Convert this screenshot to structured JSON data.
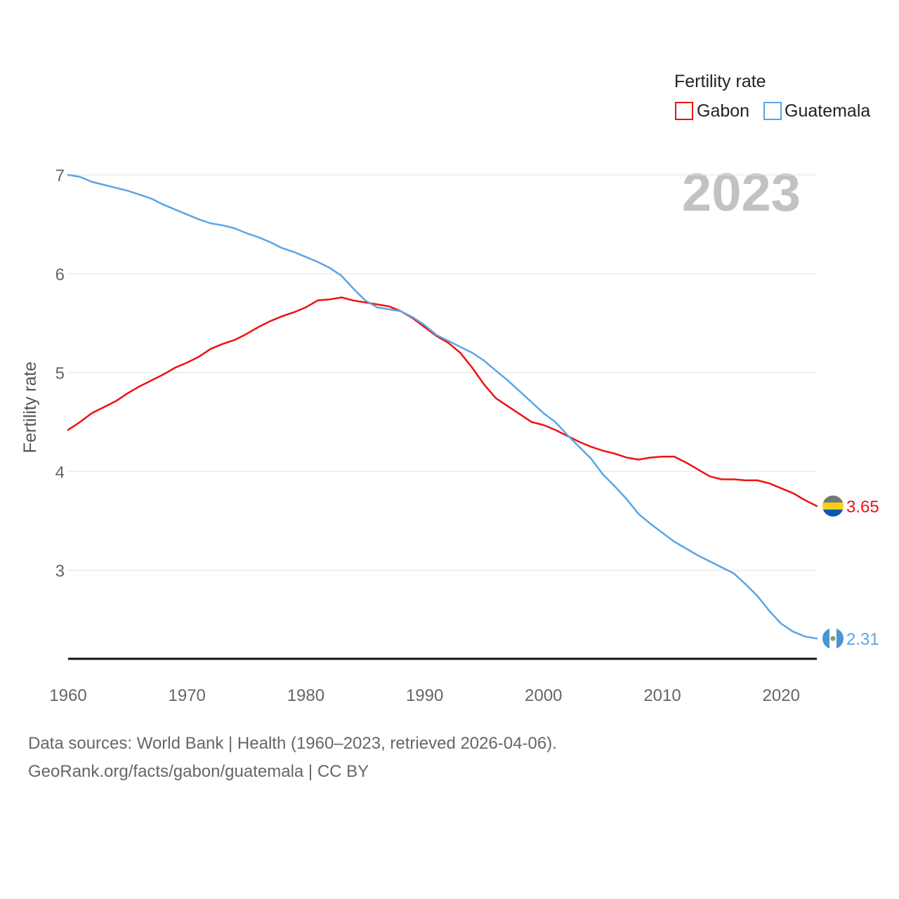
{
  "chart_data": {
    "type": "line",
    "legend_title": "Fertility rate",
    "ylabel": "Fertility rate",
    "xlabel": "",
    "current_year_label": "2023",
    "xlim": [
      1960,
      2023
    ],
    "ylim": [
      2.1,
      7.1
    ],
    "y_ticks": [
      3,
      4,
      5,
      6,
      7
    ],
    "x_ticks": [
      1960,
      1970,
      1980,
      1990,
      2000,
      2010,
      2020
    ],
    "grid": true,
    "legend_position": "top-right",
    "x": [
      1960,
      1961,
      1962,
      1963,
      1964,
      1965,
      1966,
      1967,
      1968,
      1969,
      1970,
      1971,
      1972,
      1973,
      1974,
      1975,
      1976,
      1977,
      1978,
      1979,
      1980,
      1981,
      1982,
      1983,
      1984,
      1985,
      1986,
      1987,
      1988,
      1989,
      1990,
      1991,
      1992,
      1993,
      1994,
      1995,
      1996,
      1997,
      1998,
      1999,
      2000,
      2001,
      2002,
      2003,
      2004,
      2005,
      2006,
      2007,
      2008,
      2009,
      2010,
      2011,
      2012,
      2013,
      2014,
      2015,
      2016,
      2017,
      2018,
      2019,
      2020,
      2021,
      2022,
      2023
    ],
    "series": [
      {
        "name": "Gabon",
        "color": "#ee1111",
        "end_label": "3.65",
        "values": [
          4.42,
          4.5,
          4.59,
          4.65,
          4.71,
          4.79,
          4.86,
          4.92,
          4.98,
          5.05,
          5.1,
          5.16,
          5.24,
          5.29,
          5.33,
          5.39,
          5.46,
          5.52,
          5.57,
          5.61,
          5.66,
          5.73,
          5.74,
          5.76,
          5.73,
          5.71,
          5.69,
          5.67,
          5.62,
          5.55,
          5.46,
          5.37,
          5.3,
          5.2,
          5.05,
          4.88,
          4.74,
          4.66,
          4.58,
          4.5,
          4.47,
          4.42,
          4.36,
          4.3,
          4.25,
          4.21,
          4.18,
          4.14,
          4.12,
          4.14,
          4.15,
          4.15,
          4.09,
          4.02,
          3.95,
          3.92,
          3.92,
          3.91,
          3.91,
          3.88,
          3.83,
          3.78,
          3.71,
          3.65
        ]
      },
      {
        "name": "Guatemala",
        "color": "#5aa5e6",
        "end_label": "2.31",
        "values": [
          7.0,
          6.98,
          6.93,
          6.9,
          6.87,
          6.84,
          6.8,
          6.76,
          6.7,
          6.65,
          6.6,
          6.55,
          6.51,
          6.49,
          6.46,
          6.41,
          6.37,
          6.32,
          6.26,
          6.22,
          6.17,
          6.12,
          6.06,
          5.98,
          5.85,
          5.73,
          5.66,
          5.64,
          5.62,
          5.56,
          5.48,
          5.38,
          5.32,
          5.26,
          5.2,
          5.12,
          5.02,
          4.92,
          4.81,
          4.7,
          4.59,
          4.5,
          4.37,
          4.25,
          4.13,
          3.97,
          3.85,
          3.72,
          3.57,
          3.47,
          3.38,
          3.29,
          3.22,
          3.15,
          3.09,
          3.03,
          2.97,
          2.86,
          2.74,
          2.59,
          2.46,
          2.38,
          2.33,
          2.31
        ]
      }
    ]
  },
  "footer": {
    "line1": "Data sources: World Bank | Health (1960–2023, retrieved 2026-04-06).",
    "line2": "GeoRank.org/facts/gabon/guatemala | CC BY"
  }
}
